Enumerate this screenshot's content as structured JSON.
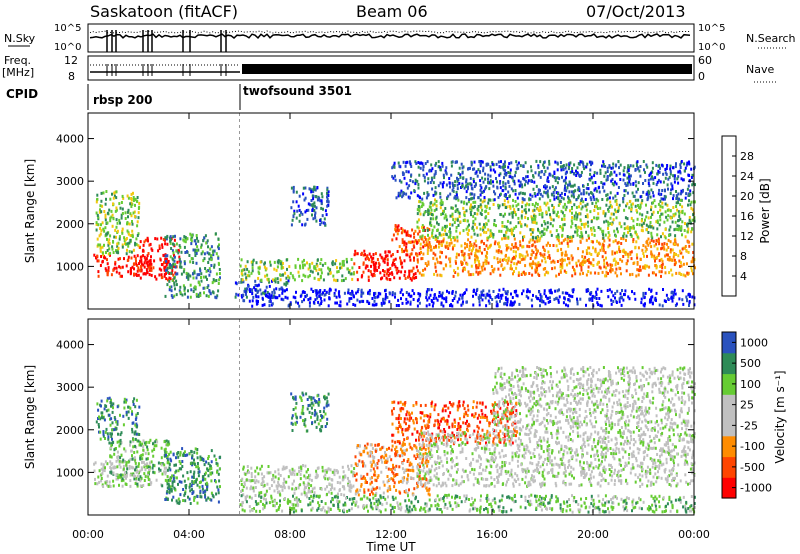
{
  "header": {
    "station": "Saskatoon (fitACF)",
    "beam": "Beam 06",
    "date": "07/Oct/2013"
  },
  "strip_labels": {
    "nsky": "N.Sky",
    "nsearch": "N.Search",
    "freq": "Freq.",
    "freq_unit": "[MHz]",
    "nave": "Nave",
    "cpid": "CPID",
    "ticks_power_hi": "10^5",
    "ticks_power_lo": "10^0",
    "freq_hi": "12",
    "freq_lo": "8",
    "nave_hi": "60",
    "nave_lo": "0"
  },
  "cpid_modes": [
    {
      "name": "rbsp 200",
      "start_hour": 0,
      "end_hour": 6
    },
    {
      "name": "twofsound 3501",
      "start_hour": 6,
      "end_hour": 24
    }
  ],
  "colors": {
    "power": [
      "#0000ff",
      "#2a52be",
      "#2e8b57",
      "#66cc33",
      "#f2c80f",
      "#ff8c00",
      "#ff4500",
      "#ff0000"
    ],
    "velocity": [
      "#ff0000",
      "#ff4500",
      "#ff8c00",
      "#c0c0c0",
      "#c0c0c0",
      "#66cc33",
      "#2e8b57",
      "#2a52be"
    ]
  },
  "chart_data": [
    {
      "type": "heatmap",
      "panel": "power",
      "ylabel": "Slant Range [km]",
      "xlabel": "Time UT",
      "xlim": [
        0,
        24
      ],
      "ylim": [
        0,
        4600
      ],
      "xticks": [
        "00:00",
        "04:00",
        "08:00",
        "12:00",
        "16:00",
        "20:00",
        "00:00"
      ],
      "yticks": [
        "1000",
        "2000",
        "3000",
        "4000"
      ],
      "colorbar": {
        "label": "Power [dB]",
        "ticks": [
          "4",
          "8",
          "12",
          "16",
          "20",
          "24",
          "28"
        ]
      },
      "scatter_regions": [
        {
          "t0": 0.2,
          "t1": 2.5,
          "r0": 800,
          "r1": 1300,
          "level": 7
        },
        {
          "t0": 2.0,
          "t1": 3.6,
          "r0": 700,
          "r1": 1700,
          "level": 7
        },
        {
          "t0": 0.3,
          "t1": 2.0,
          "r0": 1300,
          "r1": 2800,
          "level": 3
        },
        {
          "t0": 3.0,
          "t1": 5.2,
          "r0": 300,
          "r1": 1800,
          "level": 2
        },
        {
          "t0": 5.8,
          "t1": 8.0,
          "r0": 300,
          "r1": 700,
          "level": 1
        },
        {
          "t0": 6.0,
          "t1": 10.5,
          "r0": 700,
          "r1": 1200,
          "level": 3
        },
        {
          "t0": 8.0,
          "t1": 9.5,
          "r0": 2000,
          "r1": 2900,
          "level": 1
        },
        {
          "t0": 10.5,
          "t1": 13.0,
          "r0": 700,
          "r1": 1400,
          "level": 7
        },
        {
          "t0": 12.0,
          "t1": 13.5,
          "r0": 1300,
          "r1": 2000,
          "level": 6
        },
        {
          "t0": 13.0,
          "t1": 24.0,
          "r0": 800,
          "r1": 1700,
          "level": 5
        },
        {
          "t0": 13.0,
          "t1": 24.0,
          "r0": 1700,
          "r1": 2600,
          "level": 3
        },
        {
          "t0": 12.0,
          "t1": 24.0,
          "r0": 2600,
          "r1": 3500,
          "level": 1
        },
        {
          "t0": 6.0,
          "t1": 24.0,
          "r0": 100,
          "r1": 500,
          "level": 0
        }
      ]
    },
    {
      "type": "heatmap",
      "panel": "velocity",
      "ylabel": "Slant Range [km]",
      "xlabel": "Time UT",
      "xlim": [
        0,
        24
      ],
      "ylim": [
        0,
        4600
      ],
      "xticks": [
        "00:00",
        "04:00",
        "08:00",
        "12:00",
        "16:00",
        "20:00",
        "00:00"
      ],
      "yticks": [
        "1000",
        "2000",
        "3000",
        "4000"
      ],
      "colorbar": {
        "label": "Velocity [m s⁻¹]",
        "ticks": [
          "1000",
          "500",
          "100",
          "25",
          "-25",
          "-100",
          "-500",
          "-1000"
        ]
      },
      "scatter_regions": [
        {
          "t0": 0.2,
          "t1": 2.5,
          "r0": 700,
          "r1": 1300,
          "level": 4
        },
        {
          "t0": 0.8,
          "t1": 3.2,
          "r0": 700,
          "r1": 1800,
          "level": 5
        },
        {
          "t0": 0.3,
          "t1": 2.0,
          "r0": 1800,
          "r1": 2800,
          "level": 6
        },
        {
          "t0": 3.0,
          "t1": 5.2,
          "r0": 300,
          "r1": 1600,
          "level": 6
        },
        {
          "t0": 6.0,
          "t1": 10.5,
          "r0": 500,
          "r1": 1200,
          "level": 4
        },
        {
          "t0": 8.0,
          "t1": 9.5,
          "r0": 2000,
          "r1": 2900,
          "level": 6
        },
        {
          "t0": 10.5,
          "t1": 13.5,
          "r0": 500,
          "r1": 1700,
          "level": 2
        },
        {
          "t0": 12.0,
          "t1": 17.0,
          "r0": 1700,
          "r1": 2700,
          "level": 1
        },
        {
          "t0": 13.0,
          "t1": 24.0,
          "r0": 700,
          "r1": 2000,
          "level": 4
        },
        {
          "t0": 16.0,
          "t1": 24.0,
          "r0": 2000,
          "r1": 3500,
          "level": 4
        },
        {
          "t0": 6.0,
          "t1": 24.0,
          "r0": 100,
          "r1": 500,
          "level": 5
        }
      ]
    }
  ]
}
